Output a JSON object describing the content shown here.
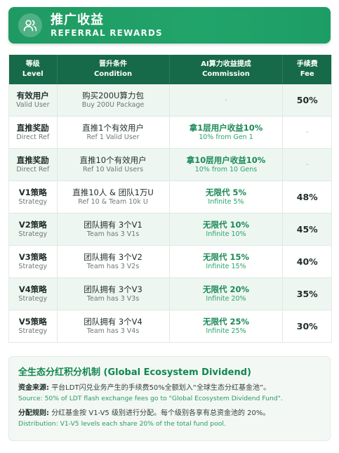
{
  "header": {
    "title": "推广收益",
    "subtitle": "REFERRAL REWARDS",
    "icon": "users-icon",
    "color": "#21a46a"
  },
  "table": {
    "columns": [
      {
        "cn": "等级",
        "en": "Level"
      },
      {
        "cn": "晋升条件",
        "en": "Condition"
      },
      {
        "cn": "AI算力收益提成",
        "en": "Commission"
      },
      {
        "cn": "手续费",
        "en": "Fee"
      }
    ],
    "rows": [
      {
        "level_cn": "有效用户",
        "level_en": "Valid User",
        "cond_cn": "购买200U算力包",
        "cond_en": "Buy 200U Package",
        "com_cn": "",
        "com_en": "",
        "fee": "50%"
      },
      {
        "level_cn": "直推奖励",
        "level_en": "Direct Ref",
        "cond_cn": "直推1个有效用户",
        "cond_en": "Ref 1 Valid User",
        "com_cn": "拿1层用户收益10%",
        "com_en": "10% from Gen 1",
        "fee": ""
      },
      {
        "level_cn": "直推奖励",
        "level_en": "Direct Ref",
        "cond_cn": "直推10个有效用户",
        "cond_en": "Ref 10 Valid Users",
        "com_cn": "拿10层用户收益10%",
        "com_en": "10% from 10 Gens",
        "fee": ""
      },
      {
        "level_cn": "V1策略",
        "level_en": "Strategy",
        "cond_cn": "直推10人 & 团队1万U",
        "cond_en": "Ref 10 & Team 10k U",
        "com_cn": "无限代 5%",
        "com_en": "Infinite 5%",
        "fee": "48%"
      },
      {
        "level_cn": "V2策略",
        "level_en": "Strategy",
        "cond_cn": "团队拥有 3个V1",
        "cond_en": "Team has 3 V1s",
        "com_cn": "无限代 10%",
        "com_en": "Infinite 10%",
        "fee": "45%"
      },
      {
        "level_cn": "V3策略",
        "level_en": "Strategy",
        "cond_cn": "团队拥有 3个V2",
        "cond_en": "Team has 3 V2s",
        "com_cn": "无限代 15%",
        "com_en": "Infinite 15%",
        "fee": "40%"
      },
      {
        "level_cn": "V4策略",
        "level_en": "Strategy",
        "cond_cn": "团队拥有 3个V3",
        "cond_en": "Team has 3 V3s",
        "com_cn": "无限代 20%",
        "com_en": "Infinite 20%",
        "fee": "35%"
      },
      {
        "level_cn": "V5策略",
        "level_en": "Strategy",
        "cond_cn": "团队拥有 3个V4",
        "cond_en": "Team has 3 V4s",
        "com_cn": "无限代 25%",
        "com_en": "Infinite 25%",
        "fee": "30%"
      }
    ],
    "empty_mark": "-"
  },
  "fund": {
    "title": "全生态分红积分机制 (Global Ecosystem Dividend)",
    "source_label": "资金来源:",
    "source_cn": "平台LDT闪兑业务产生的手续费50%全额划入“全球生态分红基金池”。",
    "source_en": "Source: 50% of LDT flash exchange fees go to \"Global Ecosystem Dividend Fund\".",
    "rule_label": "分配规则:",
    "rule_cn": "分红基金按 V1-V5 级别进行分配。每个级别各享有总资金池的 20%。",
    "rule_en": "Distribution: V1-V5 levels each share 20% of the total fund pool."
  }
}
